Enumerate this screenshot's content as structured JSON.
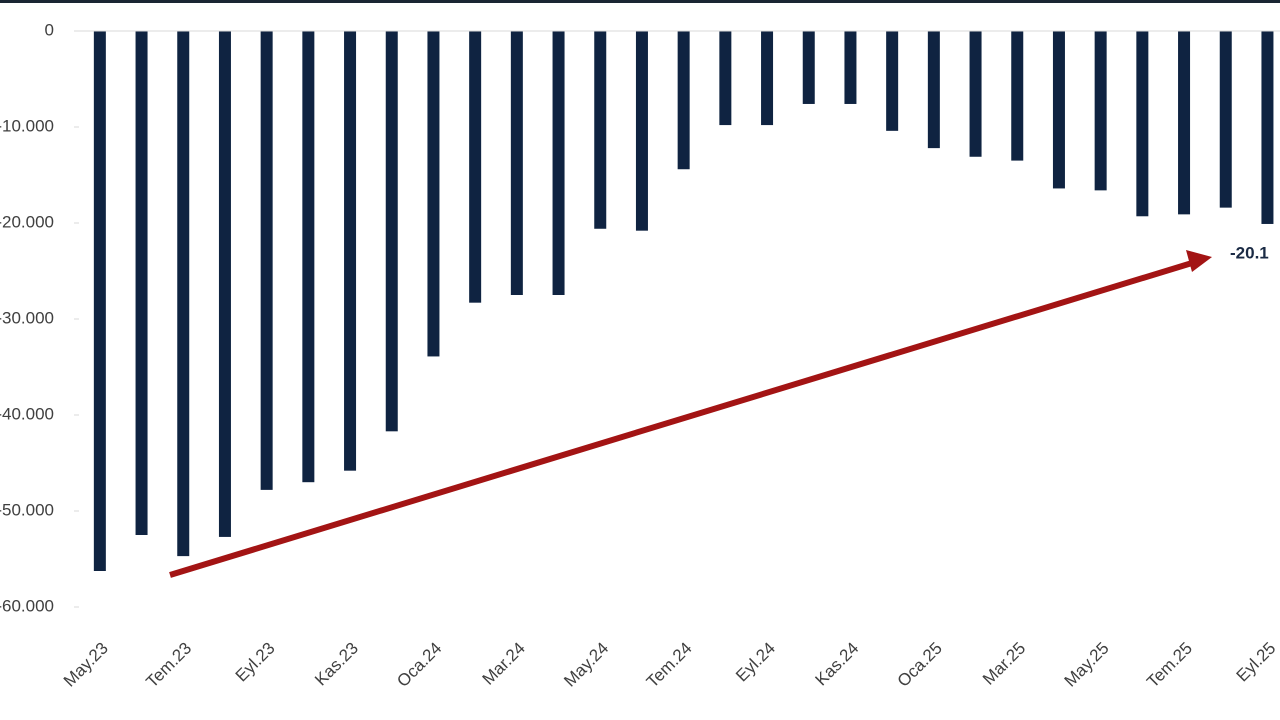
{
  "chart_data": {
    "type": "bar",
    "categories": [
      "May.23",
      null,
      "Tem.23",
      null,
      "Eyl.23",
      null,
      "Kas.23",
      null,
      "Oca.24",
      null,
      "Mar.24",
      null,
      "May.24",
      null,
      "Tem.24",
      null,
      "Eyl.24",
      null,
      "Kas.24",
      null,
      "Oca.25",
      null,
      "Mar.25",
      null,
      "May.25",
      null,
      "Tem.25",
      null,
      "Eyl.25"
    ],
    "values": [
      -56250,
      -52500,
      -54700,
      -52700,
      -47800,
      -47000,
      -45800,
      -41700,
      -33900,
      -28300,
      -27500,
      -27500,
      -20600,
      -20800,
      -14400,
      -9800,
      -9800,
      -7600,
      -7600,
      -10400,
      -12200,
      -13100,
      -13500,
      -16400,
      -16600,
      -19300,
      -19100,
      -18400,
      -20100
    ],
    "color": "#0f2341",
    "ylim": [
      -60000,
      0
    ],
    "yticks": [
      0,
      {
        "value": -10000,
        "label": "-10.000"
      },
      {
        "value": -20000,
        "label": "-20.000"
      },
      {
        "value": -30000,
        "label": "-30.000"
      },
      {
        "value": -40000,
        "label": "-40.000"
      },
      {
        "value": -50000,
        "label": "-50.000"
      },
      {
        "value": -60000,
        "label": "-60.000"
      }
    ],
    "annotation": "-20.1"
  }
}
